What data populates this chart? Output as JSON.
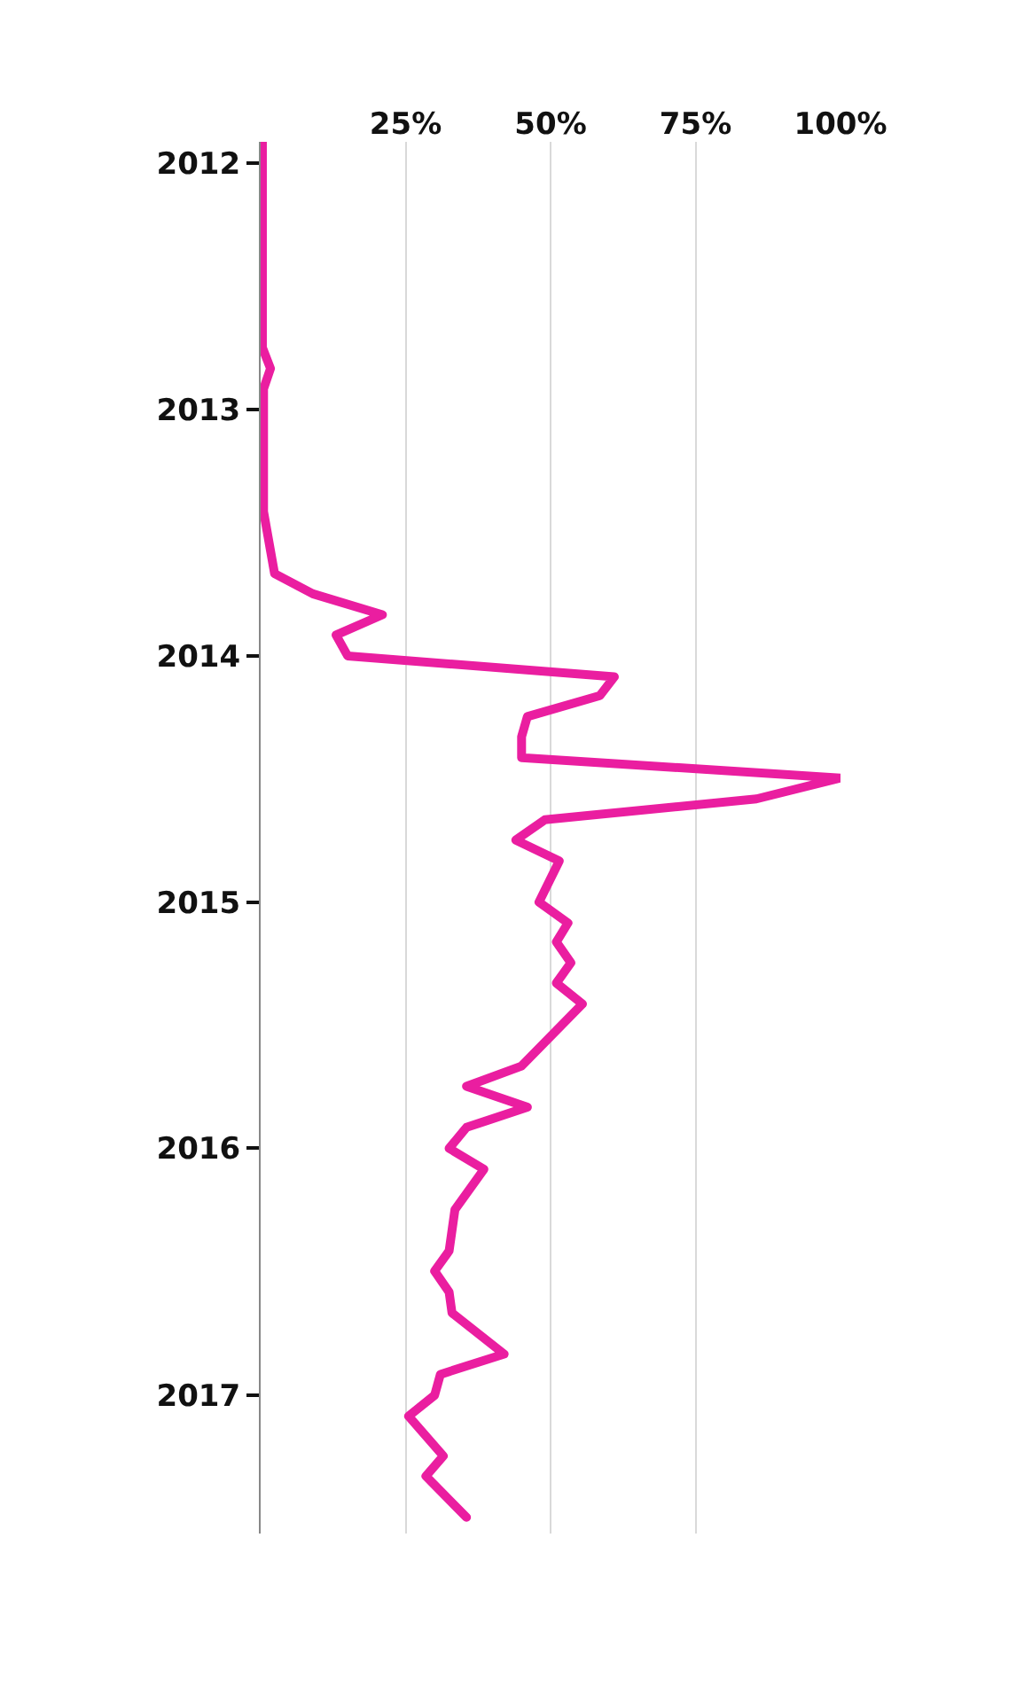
{
  "chart_data": {
    "type": "line",
    "orientation": "horizontal",
    "x": [
      "2011-12",
      "2012-06",
      "2012-10",
      "2012-11",
      "2012-12",
      "2013-06",
      "2013-09",
      "2013-10",
      "2013-11",
      "2013-12",
      "2014-01",
      "2014-02",
      "2014-03",
      "2014-04",
      "2014-05",
      "2014-06",
      "2014-07",
      "2014-08",
      "2014-09",
      "2014-10",
      "2014-11",
      "2015-01",
      "2015-02",
      "2015-03",
      "2015-04",
      "2015-05",
      "2015-06",
      "2015-09",
      "2015-10",
      "2015-11",
      "2015-12",
      "2016-01",
      "2016-02",
      "2016-04",
      "2016-06",
      "2016-07",
      "2016-08",
      "2016-09",
      "2016-11",
      "2016-12",
      "2017-01",
      "2017-02",
      "2017-04",
      "2017-05",
      "2017-07"
    ],
    "series": [
      {
        "color": "#ea1ea0",
        "values": [
          0.3,
          0.3,
          0.3,
          1.7,
          0.5,
          0.5,
          2.4,
          9,
          21,
          13,
          15,
          61,
          58.5,
          46,
          45,
          45,
          100,
          85.5,
          49,
          44,
          51.5,
          48,
          53,
          51,
          53.5,
          51,
          55.5,
          45,
          35.5,
          46,
          35.5,
          32.5,
          38.5,
          33.5,
          32.5,
          30,
          32.5,
          33,
          42,
          31,
          30,
          25.5,
          31.5,
          28.5,
          35.5
        ]
      }
    ],
    "xlim": [
      0,
      100
    ],
    "xticks": [
      {
        "value": 0,
        "label": null
      },
      {
        "value": 25,
        "label": "25%"
      },
      {
        "value": 50,
        "label": "50%"
      },
      {
        "value": 75,
        "label": "75%"
      },
      {
        "value": 100,
        "label": "100%"
      }
    ],
    "ylim": [
      "2017-07-25",
      "2011-12-01"
    ],
    "yticks": [
      "2012",
      "2013",
      "2014",
      "2015",
      "2016",
      "2017"
    ],
    "grid": "x",
    "line_style": "solid"
  }
}
